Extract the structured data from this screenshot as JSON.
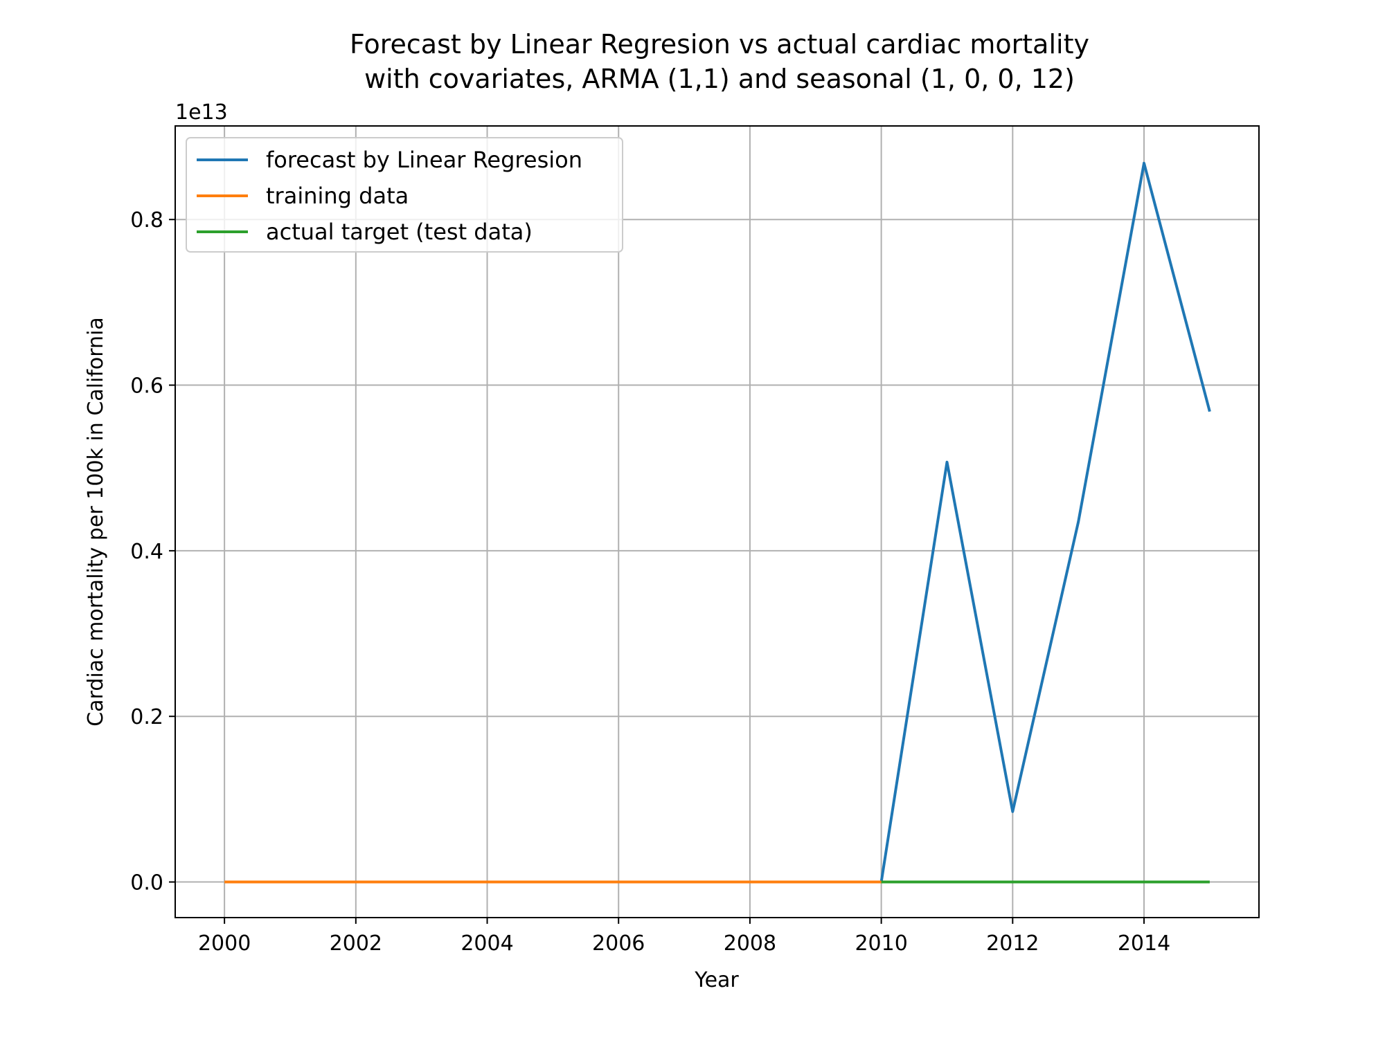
{
  "chart_data": {
    "type": "line",
    "title": [
      "Forecast by Linear Regresion vs actual cardiac mortality",
      "with covariates, ARMA (1,1) and seasonal (1, 0, 0, 12)"
    ],
    "xlabel": "Year",
    "ylabel": "Cardiac mortality per 100k in California",
    "y_offset_label": "1e13",
    "xlim": [
      1999.25,
      2015.75
    ],
    "ylim": [
      -0.043,
      0.913
    ],
    "x_ticks": [
      2000,
      2002,
      2004,
      2006,
      2008,
      2010,
      2012,
      2014
    ],
    "y_ticks": [
      0.0,
      0.2,
      0.4,
      0.6,
      0.8
    ],
    "y_tick_labels": [
      "0.0",
      "0.2",
      "0.4",
      "0.6",
      "0.8"
    ],
    "grid": true,
    "legend": "top-left",
    "series": [
      {
        "name": "forecast by Linear Regresion",
        "color": "#1f77b4",
        "x": [
          2010,
          2011,
          2012,
          2013,
          2014,
          2015
        ],
        "y": [
          0.0,
          0.507,
          0.085,
          0.435,
          0.868,
          0.568
        ]
      },
      {
        "name": "training data",
        "color": "#ff7f0e",
        "x": [
          2000,
          2001,
          2002,
          2003,
          2004,
          2005,
          2006,
          2007,
          2008,
          2009,
          2010
        ],
        "y": [
          0,
          0,
          0,
          0,
          0,
          0,
          0,
          0,
          0,
          0,
          0
        ]
      },
      {
        "name": "actual target (test data)",
        "color": "#2ca02c",
        "x": [
          2010,
          2011,
          2012,
          2013,
          2014,
          2015
        ],
        "y": [
          0,
          0,
          0,
          0,
          0,
          0
        ]
      }
    ]
  }
}
